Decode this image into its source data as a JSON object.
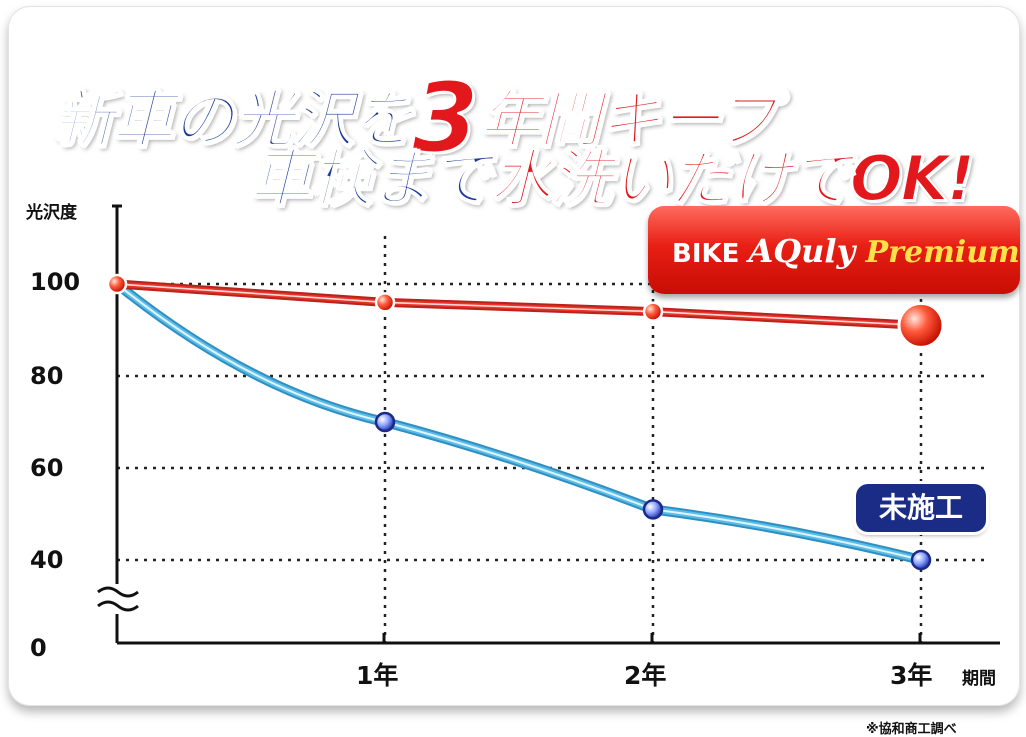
{
  "headline": {
    "line1_a": "新車の光沢を",
    "line1_b": "3",
    "line1_c": "年間キープ",
    "line2_a": "車検まで",
    "line2_b": "水洗いだけでOK!"
  },
  "badge": {
    "part1": "BIKE ",
    "part2": "AQuly",
    "part3": " Premium"
  },
  "note": "※協和商工調べ",
  "chart_data": {
    "type": "line",
    "ylabel": "光沢度",
    "xlabel": "期間",
    "categories": [
      "",
      "1年",
      "2年",
      "3年"
    ],
    "x": [
      0,
      1,
      2,
      3
    ],
    "yticks": [
      "100",
      "80",
      "60",
      "40",
      "0"
    ],
    "ylim": [
      0,
      100
    ],
    "axis_break": true,
    "grid": true,
    "series": [
      {
        "name": "BIKE AQuly Premium",
        "values": [
          100,
          96,
          94,
          91
        ],
        "color": "#e8332a"
      },
      {
        "name": "未施工",
        "values": [
          100,
          70,
          51,
          40
        ],
        "color": "#5bbde6"
      }
    ]
  }
}
